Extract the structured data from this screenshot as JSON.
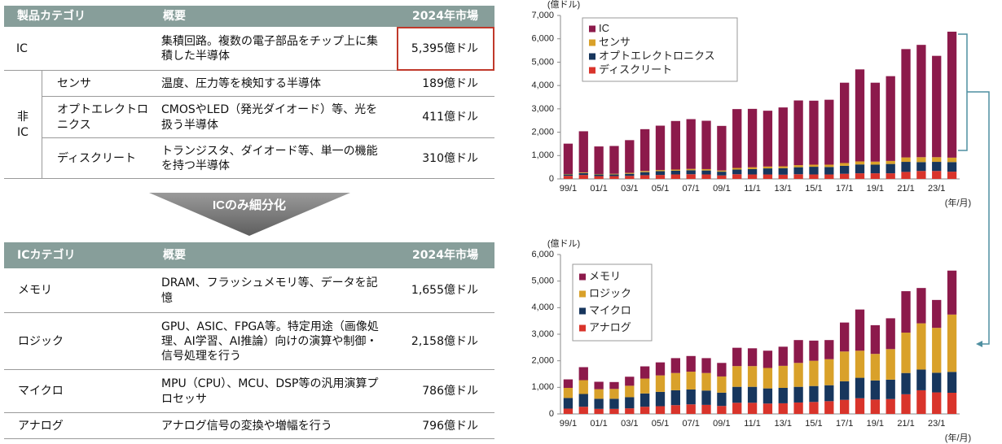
{
  "product_table": {
    "header": [
      "製品カテゴリ",
      "概要",
      "2024年市場"
    ],
    "rows": [
      {
        "category": "IC",
        "description": "集積回路。複数の電子部品をチップ上に集積した半導体",
        "market": "5,395億ドル"
      }
    ],
    "non_ic": {
      "label": "非IC",
      "rows": [
        {
          "category": "センサ",
          "description": "温度、圧力等を検知する半導体",
          "market": "189億ドル"
        },
        {
          "category": "オプトエレクトロニクス",
          "description": "CMOSやLED（発光ダイオード）等、光を扱う半導体",
          "market": "411億ドル"
        },
        {
          "category": "ディスクリート",
          "description": "トランジスタ、ダイオード等、単一の機能を持つ半導体",
          "market": "310億ドル"
        }
      ]
    }
  },
  "arrow_label": "ICのみ細分化",
  "ic_table": {
    "header": [
      "ICカテゴリ",
      "概要",
      "2024年市場"
    ],
    "rows": [
      {
        "category": "メモリ",
        "description": "DRAM、フラッシュメモリ等、データを記憶",
        "market": "1,655億ドル"
      },
      {
        "category": "ロジック",
        "description": "GPU、ASIC、FPGA等。特定用途（画像処理、AI学習、AI推論）向けの演算や制御・信号処理を行う",
        "market": "2,158億ドル"
      },
      {
        "category": "マイクロ",
        "description": "MPU（CPU）、MCU、DSP等の汎用演算プロセッサ",
        "market": "786億ドル"
      },
      {
        "category": "アナログ",
        "description": "アナログ信号の変換や増幅を行う",
        "market": "796億ドル"
      }
    ]
  },
  "chart_data": [
    {
      "type": "bar",
      "stacked": true,
      "ylabel": "(億ドル)",
      "xlabel": "(年/月)",
      "legend": "upper left",
      "categories": [
        "99/1",
        null,
        "01/1",
        null,
        "03/1",
        null,
        "05/1",
        null,
        "07/1",
        null,
        "09/1",
        null,
        "11/1",
        null,
        "13/1",
        null,
        "15/1",
        null,
        "17/1",
        null,
        "19/1",
        null,
        "21/1",
        null,
        "23/1",
        null
      ],
      "series": [
        {
          "name": "IC",
          "color": "#8c1a4b",
          "values": [
            1300,
            1760,
            1180,
            1190,
            1400,
            1790,
            1900,
            2080,
            2130,
            2070,
            1910,
            2520,
            2500,
            2390,
            2520,
            2770,
            2740,
            2780,
            3440,
            3940,
            3380,
            3630,
            4640,
            4810,
            4340,
            5395
          ]
        },
        {
          "name": "センサ",
          "color": "#d9a12a",
          "values": [
            20,
            30,
            20,
            30,
            40,
            50,
            50,
            50,
            60,
            60,
            50,
            70,
            80,
            80,
            80,
            90,
            90,
            100,
            120,
            130,
            130,
            130,
            190,
            210,
            200,
            189
          ]
        },
        {
          "name": "オプトエレクトロニクス",
          "color": "#17365d",
          "values": [
            60,
            80,
            70,
            70,
            90,
            130,
            160,
            160,
            170,
            170,
            160,
            200,
            230,
            260,
            280,
            300,
            330,
            320,
            340,
            380,
            370,
            400,
            430,
            380,
            390,
            411
          ]
        },
        {
          "name": "ディスクリート",
          "color": "#d9342b",
          "values": [
            130,
            170,
            120,
            120,
            130,
            160,
            170,
            190,
            200,
            190,
            150,
            200,
            190,
            190,
            180,
            200,
            190,
            190,
            220,
            240,
            240,
            240,
            300,
            340,
            340,
            310
          ]
        }
      ],
      "ylim": [
        0,
        7000
      ],
      "yticks": [
        0,
        {
          "value": 1000,
          "label": "1,000"
        },
        {
          "value": 2000,
          "label": "2,000"
        },
        {
          "value": 3000,
          "label": "3,000"
        },
        {
          "value": 4000,
          "label": "4,000"
        },
        {
          "value": 5000,
          "label": "5,000"
        },
        {
          "value": 6000,
          "label": "6,000"
        },
        {
          "value": 7000,
          "label": "7,000"
        }
      ]
    },
    {
      "type": "bar",
      "stacked": true,
      "ylabel": "(億ドル)",
      "xlabel": "(年/月)",
      "legend": "upper left",
      "categories": [
        "99/1",
        null,
        "01/1",
        null,
        "03/1",
        null,
        "05/1",
        null,
        "07/1",
        null,
        "09/1",
        null,
        "11/1",
        null,
        "13/1",
        null,
        "15/1",
        null,
        "17/1",
        null,
        "19/1",
        null,
        "21/1",
        null,
        "23/1",
        null
      ],
      "series": [
        {
          "name": "メモリ",
          "color": "#8c1a4b",
          "values": [
            320,
            490,
            280,
            260,
            340,
            460,
            490,
            560,
            590,
            560,
            510,
            690,
            670,
            650,
            720,
            860,
            760,
            720,
            1090,
            1550,
            1080,
            1160,
            1560,
            1330,
            1050,
            1655
          ]
        },
        {
          "name": "ロジック",
          "color": "#d9a12a",
          "values": [
            380,
            520,
            360,
            370,
            430,
            560,
            620,
            650,
            670,
            660,
            610,
            780,
            780,
            770,
            830,
            900,
            950,
            980,
            1120,
            1020,
            1000,
            1150,
            1520,
            1740,
            1690,
            2158
          ]
        },
        {
          "name": "マイクロ",
          "color": "#17365d",
          "values": [
            400,
            480,
            380,
            380,
            420,
            500,
            540,
            560,
            560,
            540,
            500,
            600,
            600,
            570,
            580,
            590,
            600,
            600,
            700,
            770,
            720,
            730,
            800,
            780,
            740,
            786
          ]
        },
        {
          "name": "アナログ",
          "color": "#d9342b",
          "values": [
            200,
            270,
            190,
            190,
            210,
            270,
            290,
            330,
            360,
            340,
            300,
            420,
            420,
            390,
            400,
            430,
            450,
            480,
            530,
            590,
            540,
            560,
            740,
            890,
            810,
            796
          ]
        }
      ],
      "ylim": [
        0,
        6000
      ],
      "yticks": [
        0,
        {
          "value": 1000,
          "label": "1,000"
        },
        {
          "value": 2000,
          "label": "2,000"
        },
        {
          "value": 3000,
          "label": "3,000"
        },
        {
          "value": 4000,
          "label": "4,000"
        },
        {
          "value": 5000,
          "label": "5,000"
        },
        {
          "value": 6000,
          "label": "6,000"
        }
      ]
    }
  ]
}
